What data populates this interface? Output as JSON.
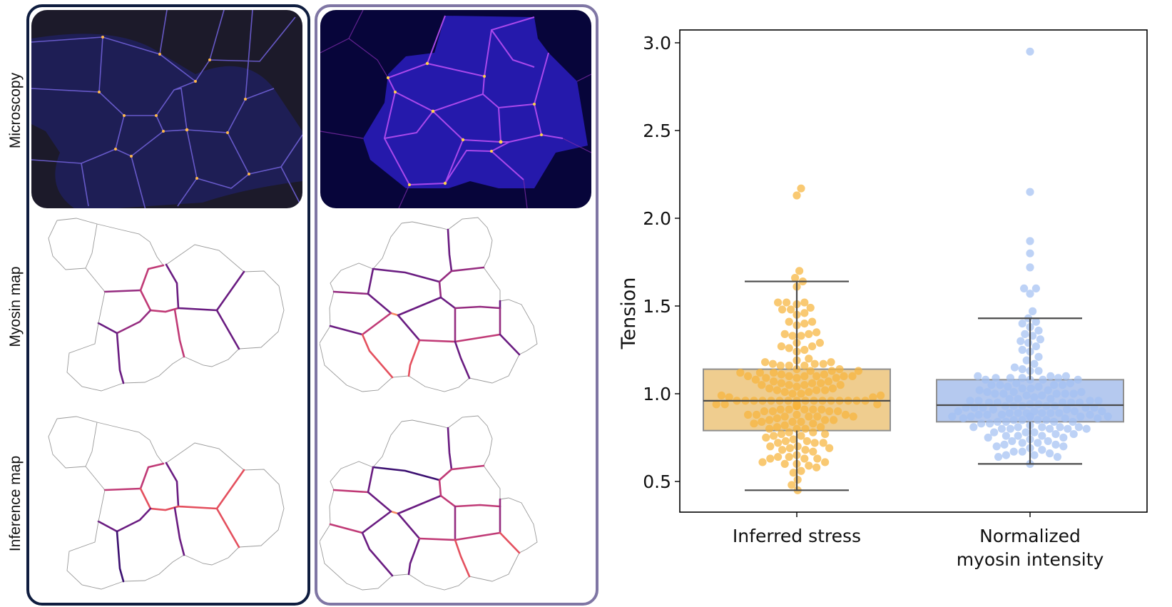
{
  "figure": {
    "row_labels": {
      "microscopy": "Microscopy",
      "myosin_map": "Myosin map",
      "inference_map": "Inference map"
    },
    "panel_colors": {
      "left_border": "#0f1d3f",
      "right_border": "#7f76a4"
    },
    "colormap": [
      "#3b0f70",
      "#6a1c81",
      "#952c80",
      "#c03a76",
      "#e4505e",
      "#f78a62",
      "#fcc074"
    ]
  },
  "chart_data": {
    "type": "box+swarm",
    "title": "",
    "xlabel": "",
    "ylabel": "Tension",
    "ylim": [
      0.32,
      3.07
    ],
    "yticks": [
      0.5,
      1.0,
      1.5,
      2.0,
      2.5,
      3.0
    ],
    "ytick_labels": [
      "0.5",
      "1.0",
      "1.5",
      "2.0",
      "2.5",
      "3.0"
    ],
    "grid": false,
    "categories": [
      "Inferred stress",
      "Normalized\nmyosin intensity"
    ],
    "category_lines": [
      [
        "Inferred stress"
      ],
      [
        "Normalized",
        "myosin intensity"
      ]
    ],
    "series": [
      {
        "name": "Inferred stress",
        "box_color": "#efcd8f",
        "point_color": "#f6b43c",
        "box": {
          "whisker_low": 0.45,
          "q1": 0.79,
          "median": 0.96,
          "q3": 1.14,
          "whisker_high": 1.64
        },
        "values": [
          2.17,
          2.13,
          1.7,
          1.66,
          1.64,
          1.61,
          1.52,
          1.52,
          1.52,
          1.51,
          1.49,
          1.48,
          1.48,
          1.46,
          1.45,
          1.41,
          1.41,
          1.4,
          1.39,
          1.35,
          1.34,
          1.34,
          1.33,
          1.33,
          1.29,
          1.29,
          1.27,
          1.27,
          1.26,
          1.25,
          1.24,
          1.2,
          1.19,
          1.18,
          1.18,
          1.17,
          1.17,
          1.17,
          1.16,
          1.16,
          1.16,
          1.14,
          1.14,
          1.13,
          1.13,
          1.13,
          1.12,
          1.12,
          1.12,
          1.11,
          1.11,
          1.1,
          1.1,
          1.1,
          1.1,
          1.1,
          1.1,
          1.09,
          1.09,
          1.09,
          1.08,
          1.07,
          1.07,
          1.06,
          1.06,
          1.06,
          1.05,
          1.05,
          1.05,
          1.05,
          1.04,
          1.03,
          1.03,
          1.02,
          1.02,
          1.02,
          1.01,
          1.01,
          1.0,
          1.0,
          0.99,
          0.99,
          0.98,
          0.98,
          0.96,
          0.96,
          0.96,
          0.96,
          0.96,
          0.96,
          0.96,
          0.96,
          0.96,
          0.96,
          0.96,
          0.96,
          0.96,
          0.96,
          0.96,
          0.96,
          0.94,
          0.94,
          0.94,
          0.94,
          0.94,
          0.93,
          0.93,
          0.93,
          0.93,
          0.93,
          0.91,
          0.91,
          0.91,
          0.91,
          0.91,
          0.9,
          0.9,
          0.9,
          0.9,
          0.88,
          0.88,
          0.88,
          0.88,
          0.87,
          0.87,
          0.87,
          0.87,
          0.86,
          0.85,
          0.85,
          0.85,
          0.84,
          0.84,
          0.84,
          0.83,
          0.83,
          0.82,
          0.81,
          0.81,
          0.8,
          0.8,
          0.8,
          0.78,
          0.78,
          0.77,
          0.77,
          0.76,
          0.76,
          0.75,
          0.74,
          0.73,
          0.73,
          0.72,
          0.72,
          0.72,
          0.7,
          0.7,
          0.69,
          0.69,
          0.68,
          0.68,
          0.67,
          0.65,
          0.64,
          0.64,
          0.63,
          0.63,
          0.63,
          0.61,
          0.61,
          0.6,
          0.6,
          0.59,
          0.58,
          0.56,
          0.55,
          0.51,
          0.48,
          0.45
        ]
      },
      {
        "name": "Normalized myosin intensity",
        "box_color": "#b5c9ef",
        "point_color": "#a4c0f2",
        "box": {
          "whisker_low": 0.6,
          "q1": 0.84,
          "median": 0.935,
          "q3": 1.08,
          "whisker_high": 1.43
        },
        "values": [
          2.95,
          2.15,
          1.87,
          1.8,
          1.72,
          1.6,
          1.6,
          1.57,
          1.47,
          1.43,
          1.41,
          1.4,
          1.38,
          1.36,
          1.34,
          1.33,
          1.31,
          1.3,
          1.29,
          1.27,
          1.25,
          1.24,
          1.21,
          1.19,
          1.17,
          1.15,
          1.14,
          1.13,
          1.13,
          1.1,
          1.1,
          1.1,
          1.09,
          1.09,
          1.09,
          1.09,
          1.08,
          1.08,
          1.08,
          1.08,
          1.06,
          1.06,
          1.05,
          1.05,
          1.05,
          1.05,
          1.04,
          1.04,
          1.03,
          1.03,
          1.02,
          1.02,
          1.01,
          1.01,
          1.01,
          1.0,
          1.0,
          1.0,
          1.0,
          1.0,
          0.99,
          0.99,
          0.98,
          0.97,
          0.97,
          0.97,
          0.96,
          0.96,
          0.96,
          0.96,
          0.95,
          0.95,
          0.95,
          0.95,
          0.95,
          0.94,
          0.94,
          0.93,
          0.93,
          0.93,
          0.93,
          0.93,
          0.92,
          0.92,
          0.92,
          0.92,
          0.92,
          0.91,
          0.91,
          0.9,
          0.9,
          0.9,
          0.9,
          0.89,
          0.89,
          0.89,
          0.89,
          0.89,
          0.89,
          0.88,
          0.88,
          0.88,
          0.88,
          0.87,
          0.87,
          0.87,
          0.87,
          0.87,
          0.87,
          0.86,
          0.86,
          0.86,
          0.85,
          0.85,
          0.85,
          0.85,
          0.84,
          0.84,
          0.84,
          0.84,
          0.83,
          0.83,
          0.82,
          0.81,
          0.81,
          0.81,
          0.81,
          0.81,
          0.8,
          0.8,
          0.8,
          0.8,
          0.8,
          0.78,
          0.78,
          0.78,
          0.77,
          0.77,
          0.76,
          0.76,
          0.76,
          0.75,
          0.75,
          0.74,
          0.73,
          0.73,
          0.72,
          0.72,
          0.71,
          0.71,
          0.7,
          0.7,
          0.69,
          0.68,
          0.67,
          0.67,
          0.66,
          0.65,
          0.65,
          0.64,
          0.64,
          0.6
        ]
      }
    ]
  }
}
